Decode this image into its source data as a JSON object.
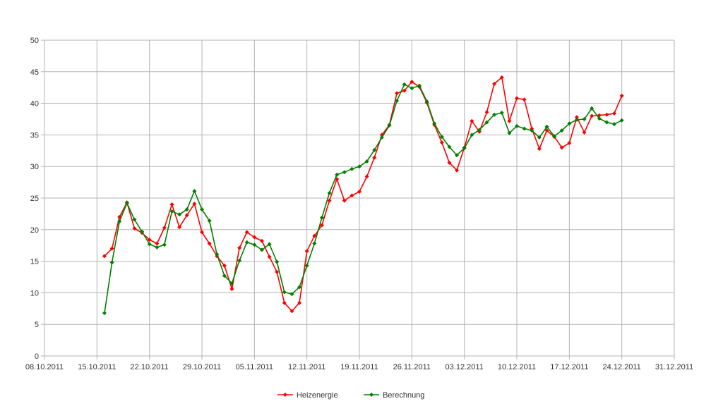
{
  "chart_data": {
    "type": "line",
    "title": "",
    "xlabel": "",
    "ylabel": "",
    "x_tick_labels": [
      "08.10.2011",
      "15.10.2011",
      "22.10.2011",
      "29.10.2011",
      "05.11.2011",
      "12.11.2011",
      "19.11.2011",
      "26.11.2011",
      "03.12.2011",
      "10.12.2011",
      "17.12.2011",
      "24.12.2011",
      "31.12.2011"
    ],
    "y_tick_labels": [
      "0",
      "5",
      "10",
      "15",
      "20",
      "25",
      "30",
      "35",
      "40",
      "45",
      "50"
    ],
    "xlim": [
      "08.10.2011",
      "31.12.2011"
    ],
    "ylim": [
      0,
      50
    ],
    "grid": true,
    "legend_position": "bottom",
    "x": [
      "16.10.2011",
      "17.10.2011",
      "18.10.2011",
      "19.10.2011",
      "20.10.2011",
      "21.10.2011",
      "22.10.2011",
      "23.10.2011",
      "24.10.2011",
      "25.10.2011",
      "26.10.2011",
      "27.10.2011",
      "28.10.2011",
      "29.10.2011",
      "30.10.2011",
      "31.10.2011",
      "01.11.2011",
      "02.11.2011",
      "03.11.2011",
      "04.11.2011",
      "05.11.2011",
      "06.11.2011",
      "07.11.2011",
      "08.11.2011",
      "09.11.2011",
      "10.11.2011",
      "11.11.2011",
      "12.11.2011",
      "13.11.2011",
      "14.11.2011",
      "15.11.2011",
      "16.11.2011",
      "17.11.2011",
      "18.11.2011",
      "19.11.2011",
      "20.11.2011",
      "21.11.2011",
      "22.11.2011",
      "23.11.2011",
      "24.11.2011",
      "25.11.2011",
      "26.11.2011",
      "27.11.2011",
      "28.11.2011",
      "29.11.2011",
      "30.11.2011",
      "01.12.2011",
      "02.12.2011",
      "03.12.2011",
      "04.12.2011",
      "05.12.2011",
      "06.12.2011",
      "07.12.2011",
      "08.12.2011",
      "09.12.2011",
      "10.12.2011",
      "11.12.2011",
      "12.12.2011",
      "13.12.2011",
      "14.12.2011",
      "15.12.2011",
      "16.12.2011",
      "17.12.2011",
      "18.12.2011",
      "19.12.2011",
      "20.12.2011",
      "21.12.2011",
      "22.12.2011",
      "23.12.2011",
      "24.12.2011"
    ],
    "series": [
      {
        "name": "Heizenergie",
        "color": "#ff0000",
        "values": [
          15.8,
          17.0,
          22.0,
          24.3,
          20.2,
          19.5,
          18.4,
          17.8,
          20.3,
          24.0,
          20.4,
          22.3,
          24.1,
          19.6,
          17.8,
          15.8,
          14.3,
          10.6,
          17.1,
          19.6,
          18.8,
          18.2,
          15.7,
          13.3,
          8.4,
          7.1,
          8.4,
          16.6,
          19.0,
          20.7,
          24.6,
          28.0,
          24.6,
          25.4,
          26.0,
          28.4,
          31.4,
          35.0,
          36.6,
          41.6,
          42.0,
          43.4,
          42.6,
          40.1,
          36.6,
          33.8,
          30.6,
          29.4,
          33.0,
          37.2,
          35.5,
          38.6,
          43.1,
          44.1,
          37.2,
          40.8,
          40.6,
          36.0,
          32.8,
          35.7,
          34.7,
          33.0,
          33.7,
          37.8,
          35.4,
          38.0,
          38.1,
          38.2,
          38.4,
          41.2
        ]
      },
      {
        "name": "Berechnung",
        "color": "#008000",
        "values": [
          6.8,
          14.8,
          21.3,
          24.2,
          21.6,
          19.7,
          17.7,
          17.2,
          17.6,
          22.9,
          22.4,
          23.2,
          26.1,
          23.2,
          21.4,
          16.1,
          12.7,
          11.5,
          15.1,
          18.0,
          17.6,
          16.8,
          17.7,
          14.9,
          10.1,
          9.8,
          10.9,
          14.3,
          17.8,
          21.9,
          25.8,
          28.7,
          29.1,
          29.6,
          30.0,
          30.8,
          32.6,
          34.6,
          36.5,
          40.4,
          43.0,
          42.4,
          42.8,
          40.3,
          36.8,
          34.7,
          33.1,
          31.8,
          32.9,
          35.0,
          35.8,
          37.0,
          38.2,
          38.5,
          35.3,
          36.4,
          36.0,
          35.7,
          34.6,
          36.3,
          34.8,
          35.7,
          36.8,
          37.4,
          37.5,
          39.2,
          37.6,
          37.0,
          36.7,
          37.3
        ]
      }
    ]
  }
}
